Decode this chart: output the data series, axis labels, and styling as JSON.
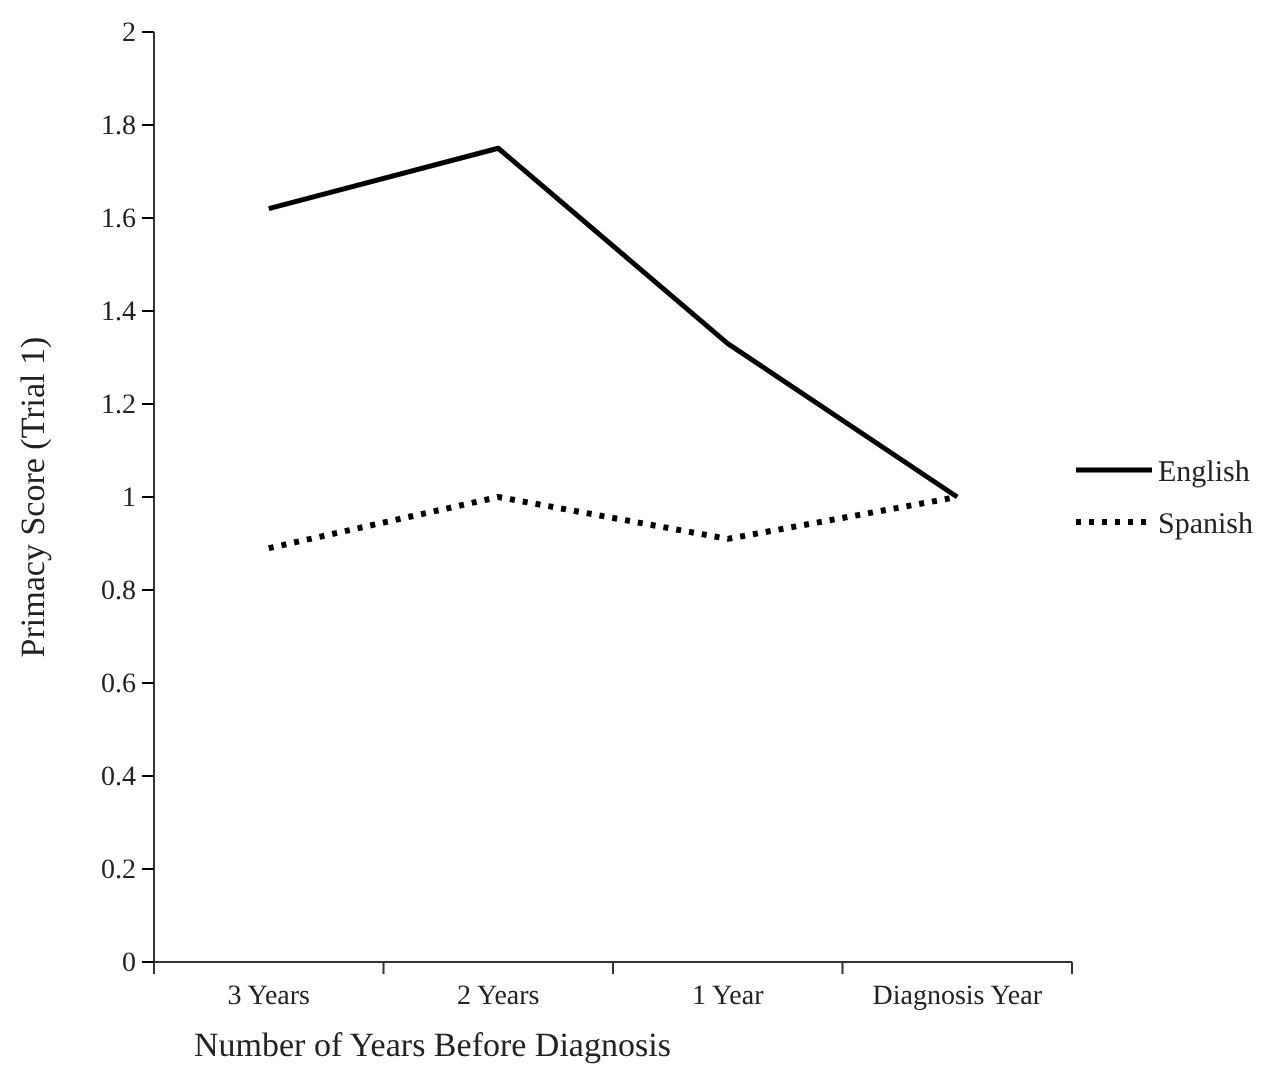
{
  "chart_data": {
    "type": "line",
    "xlabel": "Number of Years Before Diagnosis",
    "ylabel": "Primacy Score (Trial 1)",
    "categories": [
      "3 Years",
      "2 Years",
      "1 Year",
      "Diagnosis Year"
    ],
    "series": [
      {
        "name": "English",
        "color": "#000000",
        "line_style": "solid",
        "values": [
          1.62,
          1.75,
          1.33,
          1.0
        ]
      },
      {
        "name": "Spanish",
        "color": "#000000",
        "line_style": "dotted",
        "values": [
          0.89,
          1.0,
          0.91,
          1.0
        ]
      }
    ],
    "ylim": [
      0,
      2
    ],
    "yticks": [
      0,
      0.2,
      0.4,
      0.6,
      0.8,
      1,
      1.2,
      1.4,
      1.6,
      1.8,
      2
    ],
    "grid": false,
    "legend": "right",
    "marker": "none"
  }
}
